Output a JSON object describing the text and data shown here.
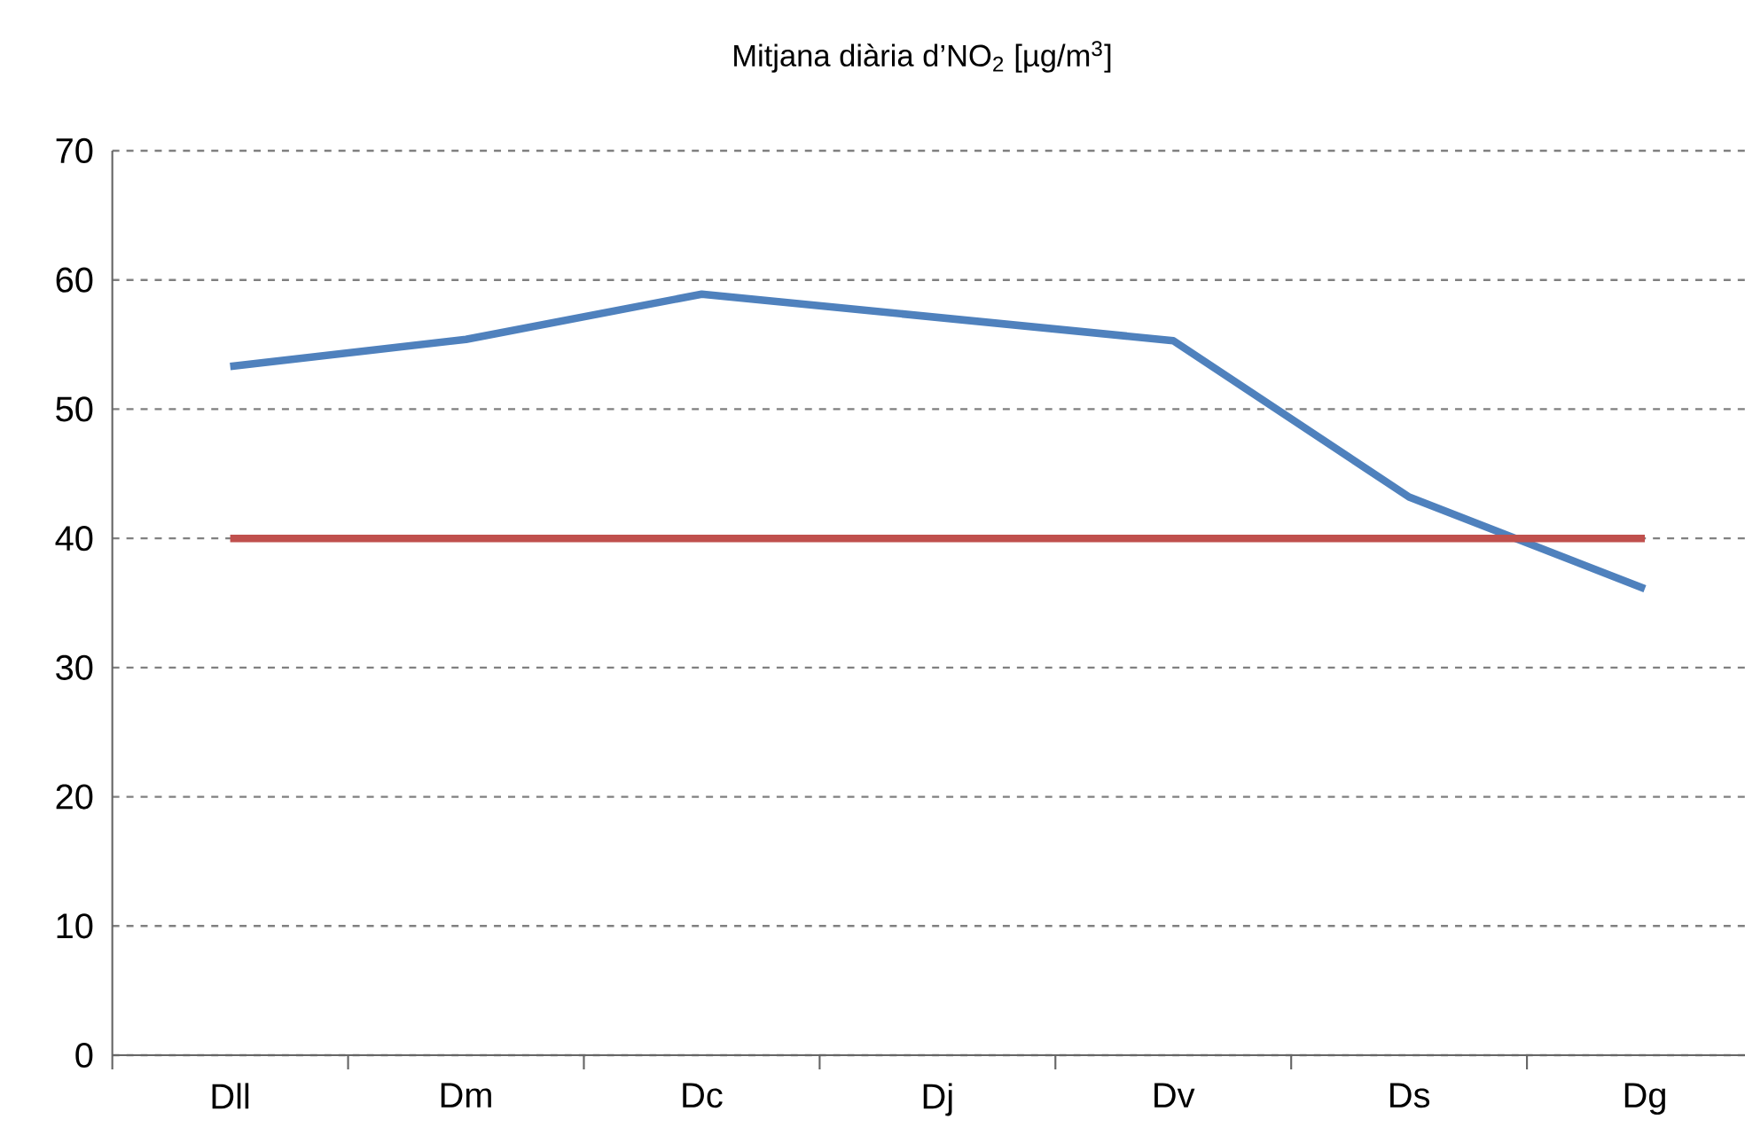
{
  "chart_data": {
    "type": "line",
    "title": "Mitjana diària d’NO$_{2}$  [µg/m$^{3}$]",
    "categories": [
      "Dll",
      "Dm",
      "Dc",
      "Dj",
      "Dv",
      "Ds",
      "Dg"
    ],
    "series": [
      {
        "color": "#4f81bd",
        "values": [
          53.3,
          55.4,
          58.9,
          57.1,
          55.3,
          43.2,
          36.1
        ]
      },
      {
        "color": "#c0504d",
        "values": [
          40,
          40,
          40,
          40,
          40,
          40,
          40
        ]
      }
    ],
    "ylim": [
      0,
      70
    ],
    "yticks": [
      0,
      10,
      20,
      30,
      40,
      50,
      60,
      70
    ],
    "grid": "y",
    "line_style": "solid"
  }
}
